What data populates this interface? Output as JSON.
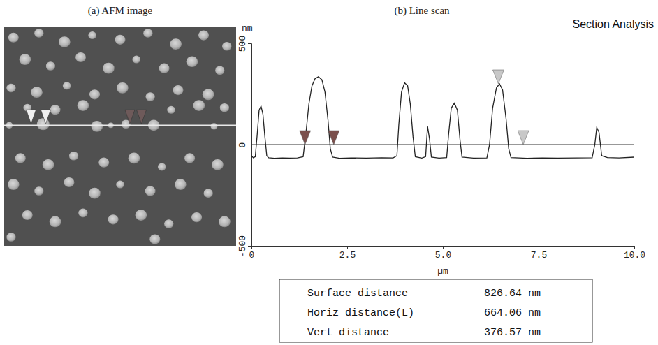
{
  "afm_image": {
    "title": "(a) AFM image",
    "xlim": [
      0,
      10
    ],
    "ylim": [
      0,
      10
    ],
    "scan_line": 4.5,
    "cursors": [
      {
        "x": 1.16,
        "color": "#f0f0f0"
      },
      {
        "x": 1.79,
        "color": "#f0f0f0"
      },
      {
        "x": 5.42,
        "color": "#6e5a5a"
      },
      {
        "x": 5.92,
        "color": "#6e5a5a"
      }
    ],
    "particles": [
      [
        0.4,
        0.5,
        0.45
      ],
      [
        1.5,
        0.3,
        0.4
      ],
      [
        2.6,
        0.7,
        0.5
      ],
      [
        3.8,
        0.4,
        0.35
      ],
      [
        5.0,
        0.6,
        0.45
      ],
      [
        6.2,
        0.3,
        0.4
      ],
      [
        7.4,
        0.8,
        0.5
      ],
      [
        8.6,
        0.4,
        0.45
      ],
      [
        9.6,
        0.9,
        0.4
      ],
      [
        0.9,
        1.5,
        0.5
      ],
      [
        2.0,
        1.8,
        0.4
      ],
      [
        3.3,
        1.4,
        0.45
      ],
      [
        4.5,
        1.9,
        0.5
      ],
      [
        5.7,
        1.5,
        0.35
      ],
      [
        6.9,
        1.9,
        0.45
      ],
      [
        8.1,
        1.6,
        0.5
      ],
      [
        9.3,
        2.0,
        0.4
      ],
      [
        0.3,
        2.8,
        0.4
      ],
      [
        1.4,
        3.0,
        0.5
      ],
      [
        2.7,
        2.7,
        0.35
      ],
      [
        3.9,
        3.1,
        0.45
      ],
      [
        5.1,
        2.8,
        0.5
      ],
      [
        6.3,
        3.2,
        0.4
      ],
      [
        7.5,
        2.9,
        0.45
      ],
      [
        8.8,
        3.1,
        0.5
      ],
      [
        1.0,
        3.7,
        0.35
      ],
      [
        2.2,
        3.8,
        0.45
      ],
      [
        3.4,
        3.6,
        0.5
      ],
      [
        7.2,
        3.8,
        0.35
      ],
      [
        8.4,
        3.6,
        0.5
      ],
      [
        9.5,
        3.7,
        0.4
      ],
      [
        0.22,
        4.5,
        0.3
      ],
      [
        1.68,
        4.45,
        0.55
      ],
      [
        4.0,
        4.55,
        0.5
      ],
      [
        4.6,
        4.5,
        0.25
      ],
      [
        5.25,
        4.45,
        0.4
      ],
      [
        6.45,
        4.5,
        0.5
      ],
      [
        9.05,
        4.55,
        0.3
      ],
      [
        0.7,
        6.0,
        0.45
      ],
      [
        1.9,
        6.3,
        0.5
      ],
      [
        3.0,
        5.9,
        0.4
      ],
      [
        4.3,
        6.2,
        0.45
      ],
      [
        5.6,
        6.0,
        0.5
      ],
      [
        6.8,
        6.4,
        0.35
      ],
      [
        8.0,
        6.0,
        0.45
      ],
      [
        9.2,
        6.3,
        0.5
      ],
      [
        0.4,
        7.2,
        0.5
      ],
      [
        1.5,
        7.5,
        0.4
      ],
      [
        2.8,
        7.1,
        0.45
      ],
      [
        3.9,
        7.6,
        0.5
      ],
      [
        5.0,
        7.2,
        0.35
      ],
      [
        6.3,
        7.5,
        0.45
      ],
      [
        7.6,
        7.2,
        0.5
      ],
      [
        8.8,
        7.6,
        0.4
      ],
      [
        1.0,
        8.6,
        0.45
      ],
      [
        2.2,
        8.9,
        0.5
      ],
      [
        3.4,
        8.5,
        0.4
      ],
      [
        4.7,
        8.8,
        0.45
      ],
      [
        5.9,
        8.6,
        0.5
      ],
      [
        7.1,
        9.0,
        0.4
      ],
      [
        8.3,
        8.7,
        0.45
      ],
      [
        9.5,
        8.9,
        0.5
      ],
      [
        0.3,
        9.6,
        0.4
      ],
      [
        6.5,
        9.7,
        0.45
      ]
    ]
  },
  "chart_data": {
    "type": "line",
    "title": "(b) Line scan",
    "subtitle": "Section Analysis",
    "x_label": "µm",
    "y_label": "nm",
    "color": "#222222",
    "xlim": [
      0,
      10
    ],
    "ylim": [
      -500,
      500
    ],
    "xticks": [
      0,
      2.5,
      {
        "value": 5,
        "label": "5.0"
      },
      7.5,
      {
        "value": 10,
        "label": "10.0"
      }
    ],
    "yticks": [
      -500,
      0,
      500
    ],
    "x": [
      0.0,
      0.05,
      0.1,
      0.15,
      0.2,
      0.25,
      0.3,
      0.35,
      0.4,
      0.45,
      0.6,
      0.8,
      1.0,
      1.2,
      1.35,
      1.42,
      1.5,
      1.58,
      1.66,
      1.75,
      1.84,
      1.92,
      2.0,
      2.06,
      2.12,
      2.3,
      2.6,
      3.0,
      3.4,
      3.7,
      3.8,
      3.85,
      3.92,
      4.0,
      4.08,
      4.15,
      4.22,
      4.28,
      4.45,
      4.55,
      4.6,
      4.65,
      4.7,
      4.9,
      5.1,
      5.15,
      5.22,
      5.3,
      5.38,
      5.45,
      5.5,
      5.8,
      6.15,
      6.22,
      6.3,
      6.4,
      6.48,
      6.56,
      6.65,
      6.72,
      6.78,
      7.2,
      7.6,
      8.0,
      8.5,
      8.9,
      8.97,
      9.02,
      9.08,
      9.15,
      9.3,
      9.6,
      10.0
    ],
    "values": [
      -55,
      -65,
      -60,
      50,
      170,
      190,
      150,
      40,
      -55,
      -65,
      -68,
      -66,
      -67,
      -66,
      -60,
      50,
      200,
      290,
      325,
      335,
      320,
      260,
      120,
      -20,
      -62,
      -68,
      -66,
      -67,
      -65,
      -66,
      -55,
      100,
      260,
      305,
      290,
      200,
      40,
      -60,
      -67,
      -60,
      90,
      30,
      -62,
      -67,
      -64,
      50,
      180,
      205,
      170,
      20,
      -62,
      -67,
      -66,
      0,
      180,
      280,
      300,
      270,
      130,
      -20,
      -64,
      -68,
      -66,
      -67,
      -66,
      -65,
      0,
      85,
      60,
      -55,
      -64,
      -66,
      -62
    ],
    "cursors": [
      {
        "x": 1.4,
        "y": 0,
        "color": "#7a4f4c"
      },
      {
        "x": 2.15,
        "y": 0,
        "color": "#7a4f4c"
      },
      {
        "x": 6.45,
        "y": 300,
        "color": "#c8c8c8"
      },
      {
        "x": 7.1,
        "y": 0,
        "color": "#c8c8c8"
      }
    ]
  },
  "table": {
    "rows": [
      [
        "Surface distance",
        "826.64 nm"
      ],
      [
        "Horiz distance(L)",
        "664.06 nm"
      ],
      [
        "Vert distance",
        "376.57 nm"
      ]
    ]
  }
}
